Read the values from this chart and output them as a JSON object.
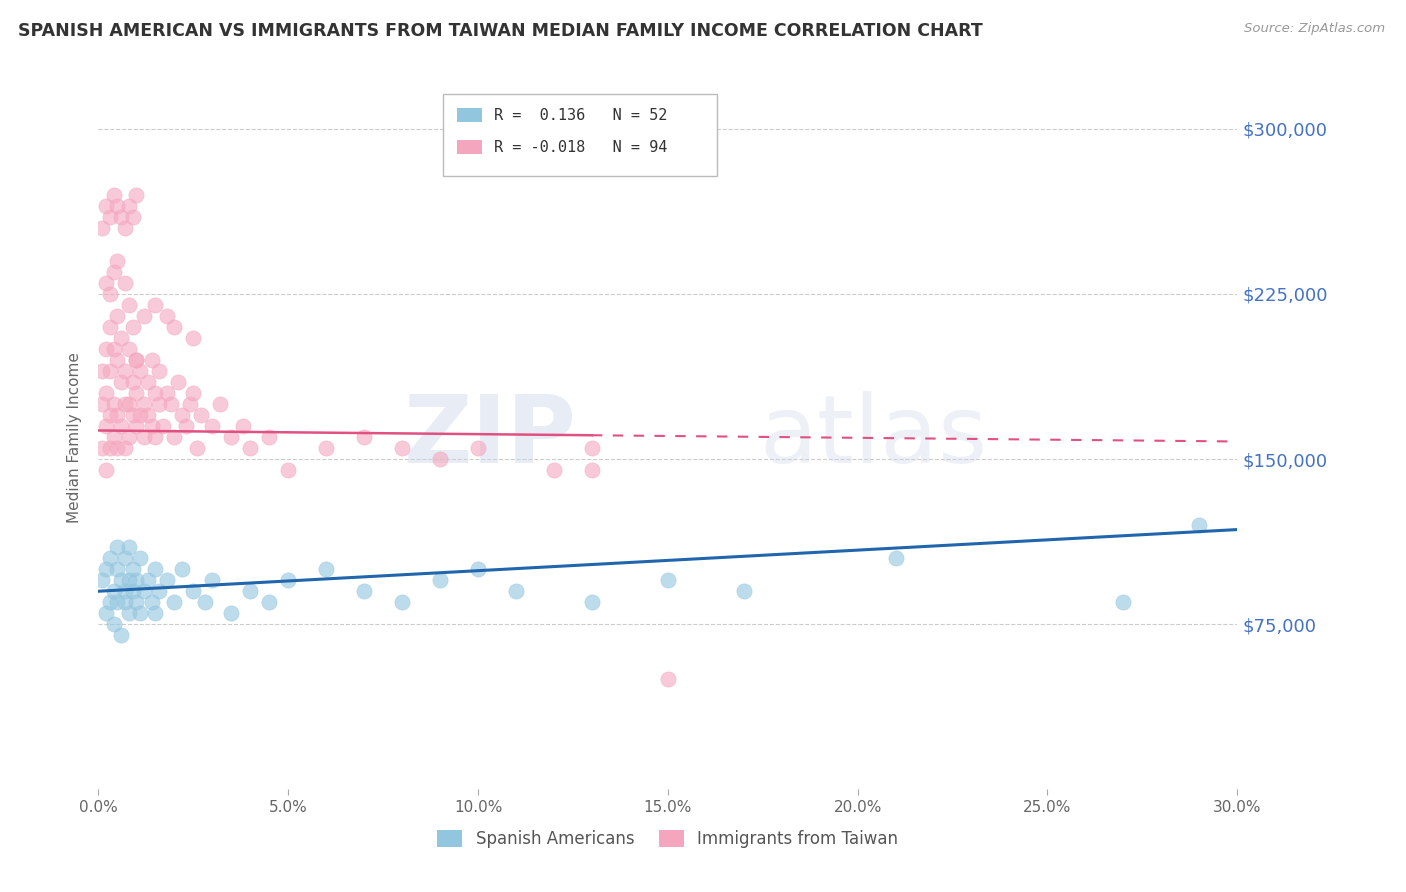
{
  "title": "SPANISH AMERICAN VS IMMIGRANTS FROM TAIWAN MEDIAN FAMILY INCOME CORRELATION CHART",
  "source": "Source: ZipAtlas.com",
  "ylabel": "Median Family Income",
  "xlim": [
    0.0,
    0.3
  ],
  "ylim": [
    0,
    320000
  ],
  "xtick_labels": [
    "0.0%",
    "5.0%",
    "10.0%",
    "15.0%",
    "20.0%",
    "25.0%",
    "30.0%"
  ],
  "xtick_vals": [
    0.0,
    0.05,
    0.1,
    0.15,
    0.2,
    0.25,
    0.3
  ],
  "ytick_vals": [
    75000,
    150000,
    225000,
    300000
  ],
  "ytick_labels": [
    "$75,000",
    "$150,000",
    "$225,000",
    "$300,000"
  ],
  "legend_label1": "Spanish Americans",
  "legend_label2": "Immigrants from Taiwan",
  "color_blue": "#92c5de",
  "color_pink": "#f4a6be",
  "color_blue_line": "#2166ac",
  "color_pink_line": "#e05080",
  "color_ytick": "#4472c4",
  "color_grid": "#cccccc",
  "blue_x": [
    0.001,
    0.002,
    0.002,
    0.003,
    0.003,
    0.004,
    0.004,
    0.005,
    0.005,
    0.005,
    0.006,
    0.006,
    0.007,
    0.007,
    0.007,
    0.008,
    0.008,
    0.008,
    0.009,
    0.009,
    0.01,
    0.01,
    0.011,
    0.011,
    0.012,
    0.013,
    0.014,
    0.015,
    0.015,
    0.016,
    0.018,
    0.02,
    0.022,
    0.025,
    0.028,
    0.03,
    0.035,
    0.04,
    0.045,
    0.05,
    0.06,
    0.07,
    0.08,
    0.09,
    0.1,
    0.11,
    0.13,
    0.15,
    0.17,
    0.21,
    0.27,
    0.29
  ],
  "blue_y": [
    95000,
    80000,
    100000,
    85000,
    105000,
    90000,
    75000,
    100000,
    85000,
    110000,
    95000,
    70000,
    90000,
    105000,
    85000,
    95000,
    110000,
    80000,
    90000,
    100000,
    85000,
    95000,
    80000,
    105000,
    90000,
    95000,
    85000,
    100000,
    80000,
    90000,
    95000,
    85000,
    100000,
    90000,
    85000,
    95000,
    80000,
    90000,
    85000,
    95000,
    100000,
    90000,
    85000,
    95000,
    100000,
    90000,
    85000,
    95000,
    90000,
    105000,
    85000,
    120000
  ],
  "pink_x": [
    0.001,
    0.001,
    0.001,
    0.002,
    0.002,
    0.002,
    0.002,
    0.003,
    0.003,
    0.003,
    0.003,
    0.004,
    0.004,
    0.004,
    0.005,
    0.005,
    0.005,
    0.005,
    0.006,
    0.006,
    0.006,
    0.007,
    0.007,
    0.007,
    0.008,
    0.008,
    0.008,
    0.009,
    0.009,
    0.009,
    0.01,
    0.01,
    0.01,
    0.011,
    0.011,
    0.012,
    0.012,
    0.013,
    0.013,
    0.014,
    0.014,
    0.015,
    0.015,
    0.016,
    0.016,
    0.017,
    0.018,
    0.019,
    0.02,
    0.021,
    0.022,
    0.023,
    0.024,
    0.025,
    0.026,
    0.027,
    0.03,
    0.032,
    0.035,
    0.038,
    0.04,
    0.045,
    0.05,
    0.06,
    0.07,
    0.08,
    0.09,
    0.1,
    0.12,
    0.13,
    0.001,
    0.002,
    0.003,
    0.004,
    0.005,
    0.006,
    0.007,
    0.008,
    0.009,
    0.01,
    0.002,
    0.003,
    0.004,
    0.005,
    0.007,
    0.008,
    0.01,
    0.012,
    0.015,
    0.018,
    0.02,
    0.025,
    0.13,
    0.15
  ],
  "pink_y": [
    175000,
    155000,
    190000,
    165000,
    180000,
    200000,
    145000,
    170000,
    190000,
    155000,
    210000,
    175000,
    200000,
    160000,
    195000,
    170000,
    215000,
    155000,
    185000,
    205000,
    165000,
    190000,
    175000,
    155000,
    200000,
    175000,
    160000,
    185000,
    210000,
    170000,
    195000,
    165000,
    180000,
    170000,
    190000,
    175000,
    160000,
    185000,
    170000,
    195000,
    165000,
    180000,
    160000,
    175000,
    190000,
    165000,
    180000,
    175000,
    160000,
    185000,
    170000,
    165000,
    175000,
    180000,
    155000,
    170000,
    165000,
    175000,
    160000,
    165000,
    155000,
    160000,
    145000,
    155000,
    160000,
    155000,
    150000,
    155000,
    145000,
    155000,
    255000,
    265000,
    260000,
    270000,
    265000,
    260000,
    255000,
    265000,
    260000,
    270000,
    230000,
    225000,
    235000,
    240000,
    230000,
    220000,
    195000,
    215000,
    220000,
    215000,
    210000,
    205000,
    145000,
    50000
  ],
  "pink_line_solid_end": 0.13,
  "pink_line_dashed_start": 0.13
}
